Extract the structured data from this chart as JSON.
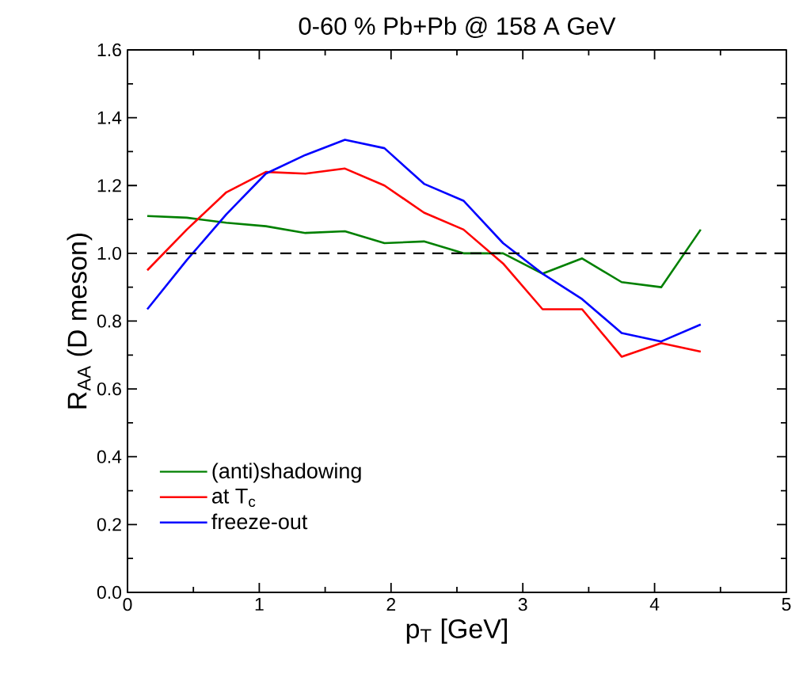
{
  "chart_data": {
    "type": "line",
    "title": "0-60 % Pb+Pb @ 158 A GeV",
    "xlabel": "p$_{T}$ [GeV]",
    "ylabel": "R$_{AA}$ (D meson)",
    "x": [
      0.15,
      0.45,
      0.75,
      1.05,
      1.35,
      1.65,
      1.95,
      2.25,
      2.55,
      2.85,
      3.15,
      3.45,
      3.75,
      4.05,
      4.35
    ],
    "series": [
      {
        "name": "(anti)shadowing",
        "color": "#008000",
        "values": [
          1.11,
          1.105,
          1.09,
          1.08,
          1.06,
          1.065,
          1.03,
          1.035,
          1.0,
          1.0,
          0.94,
          0.985,
          0.915,
          0.9,
          1.07
        ]
      },
      {
        "name": "at T$_{c}$",
        "color": "#ff0000",
        "values": [
          0.95,
          1.07,
          1.18,
          1.24,
          1.235,
          1.25,
          1.2,
          1.12,
          1.07,
          0.97,
          0.835,
          0.835,
          0.695,
          0.735,
          0.71
        ]
      },
      {
        "name": "freeze-out",
        "color": "#0000ff",
        "values": [
          0.835,
          0.98,
          1.115,
          1.235,
          1.29,
          1.335,
          1.31,
          1.205,
          1.155,
          1.03,
          0.94,
          0.865,
          0.765,
          0.74,
          0.79
        ]
      }
    ],
    "xlim": [
      0,
      5
    ],
    "ylim": [
      0,
      1.6
    ],
    "xticks": [
      0,
      1,
      2,
      3,
      4,
      5
    ],
    "yticks": [
      {
        "value": 0,
        "label": "0.0"
      },
      {
        "value": 0.2,
        "label": "0.2"
      },
      {
        "value": 0.4,
        "label": "0.4"
      },
      {
        "value": 0.6,
        "label": "0.6"
      },
      {
        "value": 0.8,
        "label": "0.8"
      },
      {
        "value": 1.0,
        "label": "1.0"
      },
      {
        "value": 1.2,
        "label": "1.2"
      },
      {
        "value": 1.4,
        "label": "1.4"
      },
      {
        "value": 1.6,
        "label": "1.6"
      }
    ],
    "ref_lines": [
      {
        "axis": "y",
        "value": 1.0,
        "color": "#000000",
        "line_style": "dashed"
      }
    ],
    "legend": "bottom left",
    "grid": false,
    "marker": "none",
    "line_style": "solid"
  }
}
